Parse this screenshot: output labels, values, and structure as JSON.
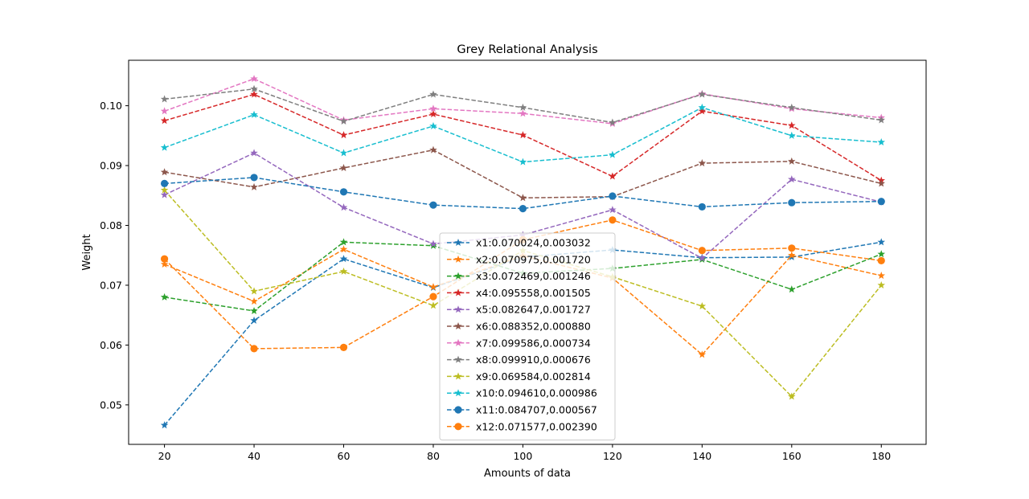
{
  "chart_data": {
    "type": "line",
    "title": "Grey Relational Analysis",
    "xlabel": "Amounts of data",
    "ylabel": "Weight",
    "x": [
      20,
      40,
      60,
      80,
      100,
      120,
      140,
      160,
      180
    ],
    "xticks": [
      "20",
      "40",
      "60",
      "80",
      "100",
      "120",
      "140",
      "160",
      "180"
    ],
    "yticks": [
      0.05,
      0.06,
      0.07,
      0.08,
      0.09,
      0.1
    ],
    "ytick_labels": [
      "0.05",
      "0.06",
      "0.07",
      "0.08",
      "0.09",
      "0.10"
    ],
    "xlim": [
      12,
      190
    ],
    "ylim": [
      0.0434,
      0.1076
    ],
    "grid": false,
    "legend_position": "center-bottom",
    "series": [
      {
        "name": "x1:0.070024,0.003032",
        "color": "#1f77b4",
        "marker": "star",
        "linestyle": "dashed",
        "values": [
          0.0466,
          0.0641,
          0.0744,
          0.0696,
          0.0747,
          0.0759,
          0.0746,
          0.0747,
          0.0772
        ]
      },
      {
        "name": "x2:0.070975,0.001720",
        "color": "#ff7f0e",
        "marker": "star",
        "linestyle": "dashed",
        "values": [
          0.0735,
          0.0673,
          0.076,
          0.0697,
          0.0749,
          0.0712,
          0.0584,
          0.075,
          0.0716
        ]
      },
      {
        "name": "x3:0.072469,0.001246",
        "color": "#2ca02c",
        "marker": "star",
        "linestyle": "dashed",
        "values": [
          0.068,
          0.0657,
          0.0772,
          0.0766,
          0.072,
          0.0728,
          0.0743,
          0.0693,
          0.0752
        ]
      },
      {
        "name": "x4:0.095558,0.001505",
        "color": "#d62728",
        "marker": "star",
        "linestyle": "dashed",
        "values": [
          0.0975,
          0.1019,
          0.0951,
          0.0986,
          0.0951,
          0.0882,
          0.0991,
          0.0967,
          0.0875
        ]
      },
      {
        "name": "x5:0.082647,0.001727",
        "color": "#9467bd",
        "marker": "star",
        "linestyle": "dashed",
        "values": [
          0.0851,
          0.0921,
          0.083,
          0.0769,
          0.0784,
          0.0826,
          0.0745,
          0.0877,
          0.0839
        ]
      },
      {
        "name": "x6:0.088352,0.000880",
        "color": "#8c564b",
        "marker": "star",
        "linestyle": "dashed",
        "values": [
          0.0889,
          0.0864,
          0.0896,
          0.0926,
          0.0846,
          0.0848,
          0.0904,
          0.0907,
          0.087
        ]
      },
      {
        "name": "x7:0.099586,0.000734",
        "color": "#e377c2",
        "marker": "star",
        "linestyle": "dashed",
        "values": [
          0.0991,
          0.1045,
          0.0976,
          0.0995,
          0.0987,
          0.097,
          0.102,
          0.0995,
          0.098
        ]
      },
      {
        "name": "x8:0.099910,0.000676",
        "color": "#7f7f7f",
        "marker": "star",
        "linestyle": "dashed",
        "values": [
          0.1011,
          0.1028,
          0.0974,
          0.1019,
          0.0997,
          0.0972,
          0.1019,
          0.0997,
          0.0976
        ]
      },
      {
        "name": "x9:0.069584,0.002814",
        "color": "#bcbd22",
        "marker": "star",
        "linestyle": "dashed",
        "values": [
          0.0859,
          0.069,
          0.0723,
          0.0666,
          0.0758,
          0.0714,
          0.0665,
          0.0514,
          0.07
        ]
      },
      {
        "name": "x10:0.094610,0.000986",
        "color": "#17becf",
        "marker": "star",
        "linestyle": "dashed",
        "values": [
          0.093,
          0.0985,
          0.0921,
          0.0966,
          0.0906,
          0.0918,
          0.0997,
          0.095,
          0.0939
        ]
      },
      {
        "name": "x11:0.084707,0.000567",
        "color": "#1f77b4",
        "marker": "circle",
        "linestyle": "dashed",
        "values": [
          0.087,
          0.088,
          0.0856,
          0.0834,
          0.0828,
          0.0849,
          0.0831,
          0.0838,
          0.084
        ]
      },
      {
        "name": "x12:0.071577,0.002390",
        "color": "#ff7f0e",
        "marker": "circle",
        "linestyle": "dashed",
        "values": [
          0.0744,
          0.0594,
          0.0596,
          0.0681,
          0.0776,
          0.0809,
          0.0758,
          0.0762,
          0.0741
        ]
      }
    ]
  }
}
